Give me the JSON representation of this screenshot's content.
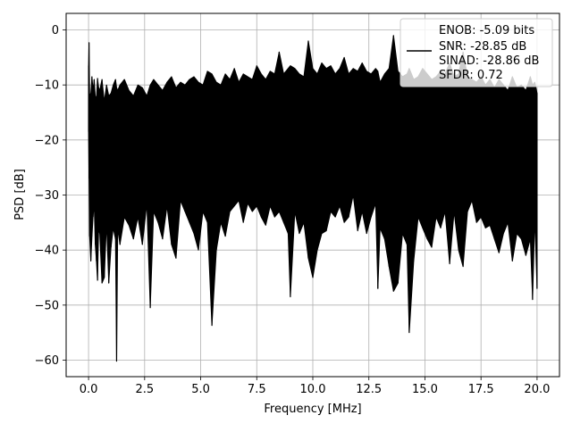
{
  "chart_data": {
    "type": "line",
    "title": "",
    "xlabel": "Frequency [MHz]",
    "ylabel": "PSD [dB]",
    "xlim": [
      -1.0,
      21.0
    ],
    "ylim": [
      -63.0,
      3.0
    ],
    "xticks": [
      0.0,
      2.5,
      5.0,
      7.5,
      10.0,
      12.5,
      15.0,
      17.5,
      20.0
    ],
    "xtick_labels": [
      "0.0",
      "2.5",
      "5.0",
      "7.5",
      "10.0",
      "12.5",
      "15.0",
      "17.5",
      "20.0"
    ],
    "yticks": [
      0,
      -10,
      -20,
      -30,
      -40,
      -50,
      -60
    ],
    "ytick_labels": [
      "0",
      "−10",
      "−20",
      "−30",
      "−40",
      "−50",
      "−60"
    ],
    "grid": true,
    "legend_position": "top-right",
    "legend": {
      "lines": [
        "ENOB: -5.09 bits",
        "SNR: -28.85 dB",
        "SINAD: -28.86 dB",
        "SFDR: 0.72"
      ]
    },
    "series": [
      {
        "color": "#000000",
        "x": [
          0.0,
          0.02,
          0.05,
          0.1,
          0.15,
          0.2,
          0.25,
          0.3,
          0.35,
          0.4,
          0.45,
          0.5,
          0.6,
          0.7,
          0.8,
          0.9,
          1.0,
          1.1,
          1.2,
          1.25,
          1.3,
          1.4,
          1.6,
          1.8,
          2.0,
          2.2,
          2.4,
          2.6,
          2.75,
          2.9,
          3.1,
          3.3,
          3.5,
          3.7,
          3.9,
          4.1,
          4.3,
          4.5,
          4.7,
          4.9,
          5.1,
          5.3,
          5.5,
          5.7,
          5.9,
          6.1,
          6.3,
          6.5,
          6.7,
          6.9,
          7.1,
          7.3,
          7.5,
          7.7,
          7.9,
          8.1,
          8.3,
          8.5,
          8.7,
          8.9,
          9.0,
          9.2,
          9.4,
          9.6,
          9.8,
          10.0,
          10.2,
          10.4,
          10.6,
          10.8,
          11.0,
          11.2,
          11.4,
          11.6,
          11.8,
          12.0,
          12.2,
          12.4,
          12.6,
          12.8,
          12.9,
          13.0,
          13.2,
          13.4,
          13.6,
          13.8,
          14.0,
          14.2,
          14.3,
          14.5,
          14.7,
          14.9,
          15.1,
          15.3,
          15.5,
          15.7,
          15.9,
          16.1,
          16.3,
          16.5,
          16.7,
          16.9,
          17.1,
          17.3,
          17.5,
          17.7,
          17.9,
          18.1,
          18.3,
          18.5,
          18.7,
          18.9,
          19.1,
          19.3,
          19.5,
          19.7,
          19.8,
          19.9,
          20.0
        ],
        "y_upper": [
          -6.5,
          -2.3,
          -12.0,
          -11.5,
          -8.5,
          -11.0,
          -9.0,
          -12.0,
          -12.5,
          -8.8,
          -10.5,
          -11.0,
          -9.0,
          -13.0,
          -10.0,
          -12.0,
          -11.5,
          -10.0,
          -9.0,
          -10.5,
          -11.0,
          -10.0,
          -9.0,
          -11.0,
          -12.0,
          -10.0,
          -10.5,
          -12.0,
          -10.0,
          -9.0,
          -10.0,
          -11.0,
          -9.5,
          -8.5,
          -10.5,
          -9.5,
          -10.0,
          -9.0,
          -8.5,
          -9.5,
          -10.0,
          -7.5,
          -8.0,
          -9.5,
          -10.0,
          -8.0,
          -9.0,
          -7.0,
          -9.5,
          -8.0,
          -8.5,
          -9.0,
          -6.5,
          -8.0,
          -9.0,
          -7.5,
          -8.0,
          -4.0,
          -8.0,
          -7.0,
          -6.5,
          -7.0,
          -8.0,
          -8.5,
          -2.0,
          -7.0,
          -8.0,
          -6.0,
          -7.0,
          -6.5,
          -8.0,
          -7.0,
          -5.0,
          -8.0,
          -7.0,
          -7.5,
          -6.0,
          -7.5,
          -8.0,
          -7.0,
          -7.5,
          -9.5,
          -8.0,
          -7.0,
          -1.0,
          -7.5,
          -8.5,
          -8.0,
          -7.0,
          -9.0,
          -8.5,
          -7.0,
          -8.0,
          -9.0,
          -8.5,
          -7.5,
          -8.0,
          -6.0,
          -8.5,
          -8.0,
          -4.0,
          -8.5,
          -9.0,
          -9.5,
          -8.5,
          -10.0,
          -9.0,
          -10.5,
          -9.0,
          -10.0,
          -11.0,
          -8.5,
          -10.5,
          -10.0,
          -11.0,
          -8.5,
          -10.0,
          -9.5,
          -11.5
        ],
        "y_lower": [
          -18.5,
          -27.0,
          -37.5,
          -42.0,
          -37.5,
          -34.0,
          -31.5,
          -39.0,
          -42.0,
          -45.5,
          -36.0,
          -37.0,
          -46.0,
          -45.0,
          -35.0,
          -46.0,
          -39.5,
          -36.0,
          -38.0,
          -60.2,
          -36.0,
          -39.0,
          -34.0,
          -35.5,
          -38.0,
          -34.0,
          -39.0,
          -31.5,
          -50.5,
          -33.0,
          -35.0,
          -38.0,
          -32.0,
          -39.0,
          -41.5,
          -31.0,
          -33.0,
          -35.0,
          -37.0,
          -40.0,
          -33.0,
          -35.0,
          -53.7,
          -40.0,
          -35.0,
          -37.5,
          -33.0,
          -32.0,
          -31.0,
          -35.0,
          -31.5,
          -33.0,
          -32.0,
          -34.0,
          -35.5,
          -32.0,
          -34.0,
          -33.0,
          -35.0,
          -37.0,
          -48.5,
          -33.0,
          -37.0,
          -35.0,
          -41.5,
          -45.0,
          -40.0,
          -37.0,
          -36.5,
          -33.0,
          -34.0,
          -32.0,
          -35.0,
          -34.0,
          -30.0,
          -36.5,
          -33.0,
          -37.0,
          -34.0,
          -31.5,
          -47.0,
          -36.0,
          -38.0,
          -43.0,
          -47.5,
          -46.0,
          -37.0,
          -39.0,
          -55.0,
          -42.0,
          -34.0,
          -36.0,
          -38.0,
          -39.5,
          -34.0,
          -36.0,
          -33.0,
          -42.5,
          -33.0,
          -40.0,
          -43.0,
          -33.0,
          -31.0,
          -35.0,
          -34.0,
          -36.0,
          -35.5,
          -38.0,
          -40.5,
          -37.0,
          -35.0,
          -42.0,
          -37.0,
          -38.0,
          -41.0,
          -38.0,
          -49.0,
          -34.0,
          -47.0
        ]
      }
    ]
  }
}
